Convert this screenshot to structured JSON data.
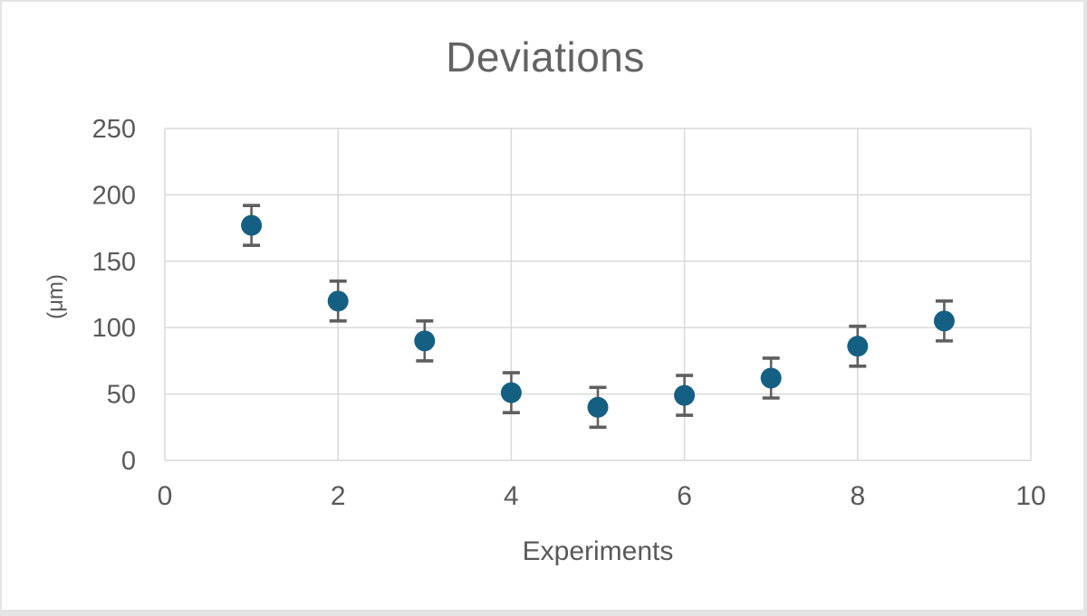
{
  "frame": {
    "background": "#ffffff",
    "border_color": "#e4e4e4"
  },
  "chart_data": {
    "type": "scatter",
    "title": "Deviations",
    "xlabel": "Experiments",
    "ylabel": "(μm)",
    "x": [
      1,
      2,
      3,
      4,
      5,
      6,
      7,
      8,
      9
    ],
    "y": [
      177,
      120,
      90,
      51,
      40,
      49,
      62,
      86,
      105
    ],
    "y_error": [
      15,
      15,
      15,
      15,
      15,
      15,
      15,
      15,
      15
    ],
    "xlim": [
      0,
      10
    ],
    "ylim": [
      0,
      250
    ],
    "xticks": [
      0,
      2,
      4,
      6,
      8,
      10
    ],
    "yticks": [
      0,
      50,
      100,
      150,
      200,
      250
    ],
    "grid": true,
    "legend": false,
    "marker_color": "#156082",
    "error_bar_color": "#5f5f5f",
    "gridline_color": "#d9d9d9",
    "text_color": "#595959"
  }
}
